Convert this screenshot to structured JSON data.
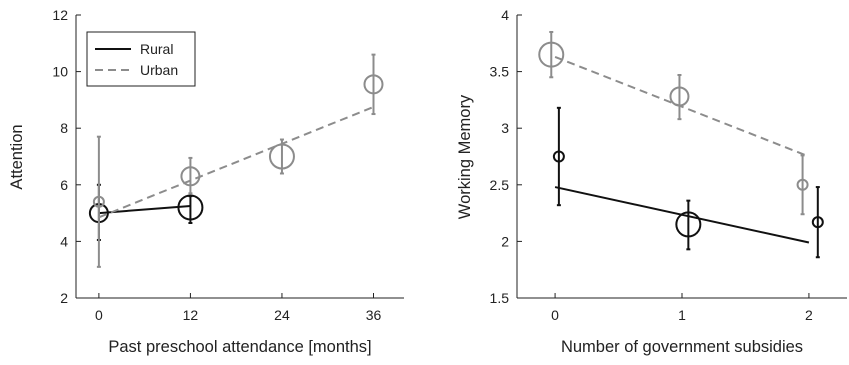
{
  "chart_data": [
    {
      "type": "line",
      "xlabel": "Past preschool attendance [months]",
      "ylabel": "Attention",
      "xlim": [
        -3,
        40
      ],
      "ylim": [
        2,
        12
      ],
      "xticks": [
        0,
        12,
        24,
        36
      ],
      "yticks": [
        2,
        4,
        6,
        8,
        10,
        12
      ],
      "grid": false,
      "legend": {
        "placement": "top-left",
        "entries": [
          "Rural",
          "Urban"
        ]
      },
      "series": [
        {
          "name": "Rural",
          "color": "#111111",
          "dash": "solid",
          "fit": [
            [
              0,
              5.0
            ],
            [
              12,
              5.25
            ]
          ],
          "points": [
            {
              "x": 0,
              "y": 5.0,
              "err_low": 4.05,
              "err_high": 6.0,
              "size": "medium"
            },
            {
              "x": 12,
              "y": 5.2,
              "err_low": 4.65,
              "err_high": 5.6,
              "size": "large"
            }
          ]
        },
        {
          "name": "Urban",
          "color": "#8c8c8c",
          "dash": "dashed",
          "fit": [
            [
              0,
              4.85
            ],
            [
              36,
              8.75
            ]
          ],
          "points": [
            {
              "x": 0,
              "y": 5.4,
              "err_low": 3.1,
              "err_high": 7.7,
              "size": "small"
            },
            {
              "x": 12,
              "y": 6.3,
              "err_low": 5.7,
              "err_high": 6.95,
              "size": "medium"
            },
            {
              "x": 24,
              "y": 7.0,
              "err_low": 6.4,
              "err_high": 7.6,
              "size": "large"
            },
            {
              "x": 36,
              "y": 9.55,
              "err_low": 8.5,
              "err_high": 10.6,
              "size": "medium"
            }
          ]
        }
      ]
    },
    {
      "type": "line",
      "xlabel": "Number of government subsidies",
      "ylabel": "Working Memory",
      "xlim": [
        -0.3,
        2.3
      ],
      "ylim": [
        1.5,
        4
      ],
      "xticks": [
        0,
        1,
        2
      ],
      "yticks": [
        1.5,
        2,
        2.5,
        3,
        3.5,
        4
      ],
      "grid": false,
      "series": [
        {
          "name": "Rural",
          "color": "#111111",
          "dash": "solid",
          "fit": [
            [
              0,
              2.48
            ],
            [
              2,
              1.99
            ]
          ],
          "points": [
            {
              "x": 0.03,
              "y": 2.75,
              "err_low": 2.32,
              "err_high": 3.18,
              "size": "small"
            },
            {
              "x": 1.05,
              "y": 2.15,
              "err_low": 1.93,
              "err_high": 2.36,
              "size": "large"
            },
            {
              "x": 2.07,
              "y": 2.17,
              "err_low": 1.86,
              "err_high": 2.48,
              "size": "small"
            }
          ]
        },
        {
          "name": "Urban",
          "color": "#8c8c8c",
          "dash": "dashed",
          "fit": [
            [
              0,
              3.63
            ],
            [
              2,
              2.75
            ]
          ],
          "points": [
            {
              "x": -0.03,
              "y": 3.65,
              "err_low": 3.45,
              "err_high": 3.85,
              "size": "large"
            },
            {
              "x": 0.98,
              "y": 3.28,
              "err_low": 3.08,
              "err_high": 3.47,
              "size": "medium"
            },
            {
              "x": 1.95,
              "y": 2.5,
              "err_low": 2.24,
              "err_high": 2.76,
              "size": "small"
            }
          ]
        }
      ]
    }
  ]
}
